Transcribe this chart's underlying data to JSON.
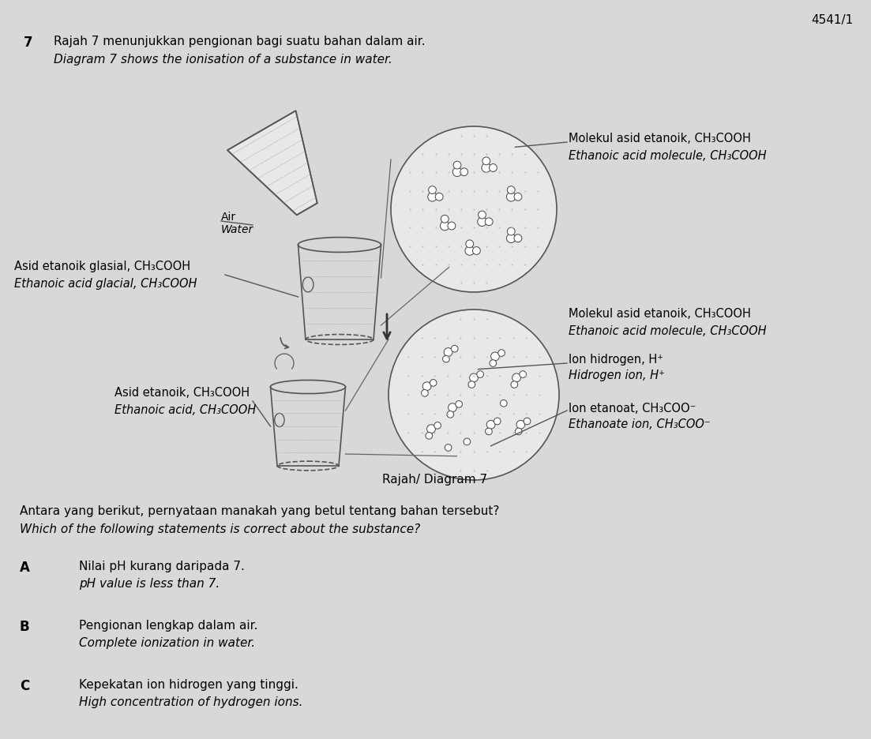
{
  "bg_color": "#d8d8d8",
  "page_num": "4541/1",
  "question_num": "7",
  "title_malay": "Rajah 7 menunjukkan pengionan bagi suatu bahan dalam air.",
  "title_english": "Diagram 7 shows the ionisation of a substance in water.",
  "diagram_label": "Rajah/ Diagram 7",
  "labels": {
    "air_water_malay": "Air",
    "air_water_english": "Water",
    "glacial_malay": "Asid etanoik glasial, CH₃COOH",
    "glacial_english": "Ethanoic acid glacial, CH₃COOH",
    "ethanoic_acid_malay": "Asid etanoik, CH₃COOH",
    "ethanoic_acid_english": "Ethanoic acid, CH₃COOH",
    "molecule1_malay": "Molekul asid etanoik, CH₃COOH",
    "molecule1_english": "Ethanoic acid molecule, CH₃COOH",
    "molecule2_malay": "Molekul asid etanoik, CH₃COOH",
    "molecule2_english": "Ethanoic acid molecule, CH₃COOH",
    "hydrogen_malay": "Ion hidrogen, H⁺",
    "hydrogen_english": "Hidrogen ion, H⁺",
    "ethanoate_malay": "Ion etanoat, CH₃COO⁻",
    "ethanoate_english": "Ethanoate ion, CH₃COO⁻"
  },
  "question": {
    "malay": "Antara yang berikut, pernyataan manakah yang betul tentang bahan tersebut?",
    "english": "Which of the following statements is correct about the substance?"
  },
  "options": {
    "A": {
      "malay": "Nilai pH kurang daripada 7.",
      "english": "pH value is less than 7."
    },
    "B": {
      "malay": "Pengionan lengkap dalam air.",
      "english": "Complete ionization in water."
    },
    "C": {
      "malay": "Kepekatan ion hidrogen yang tinggi.",
      "english": "High concentration of hydrogen ions."
    }
  }
}
